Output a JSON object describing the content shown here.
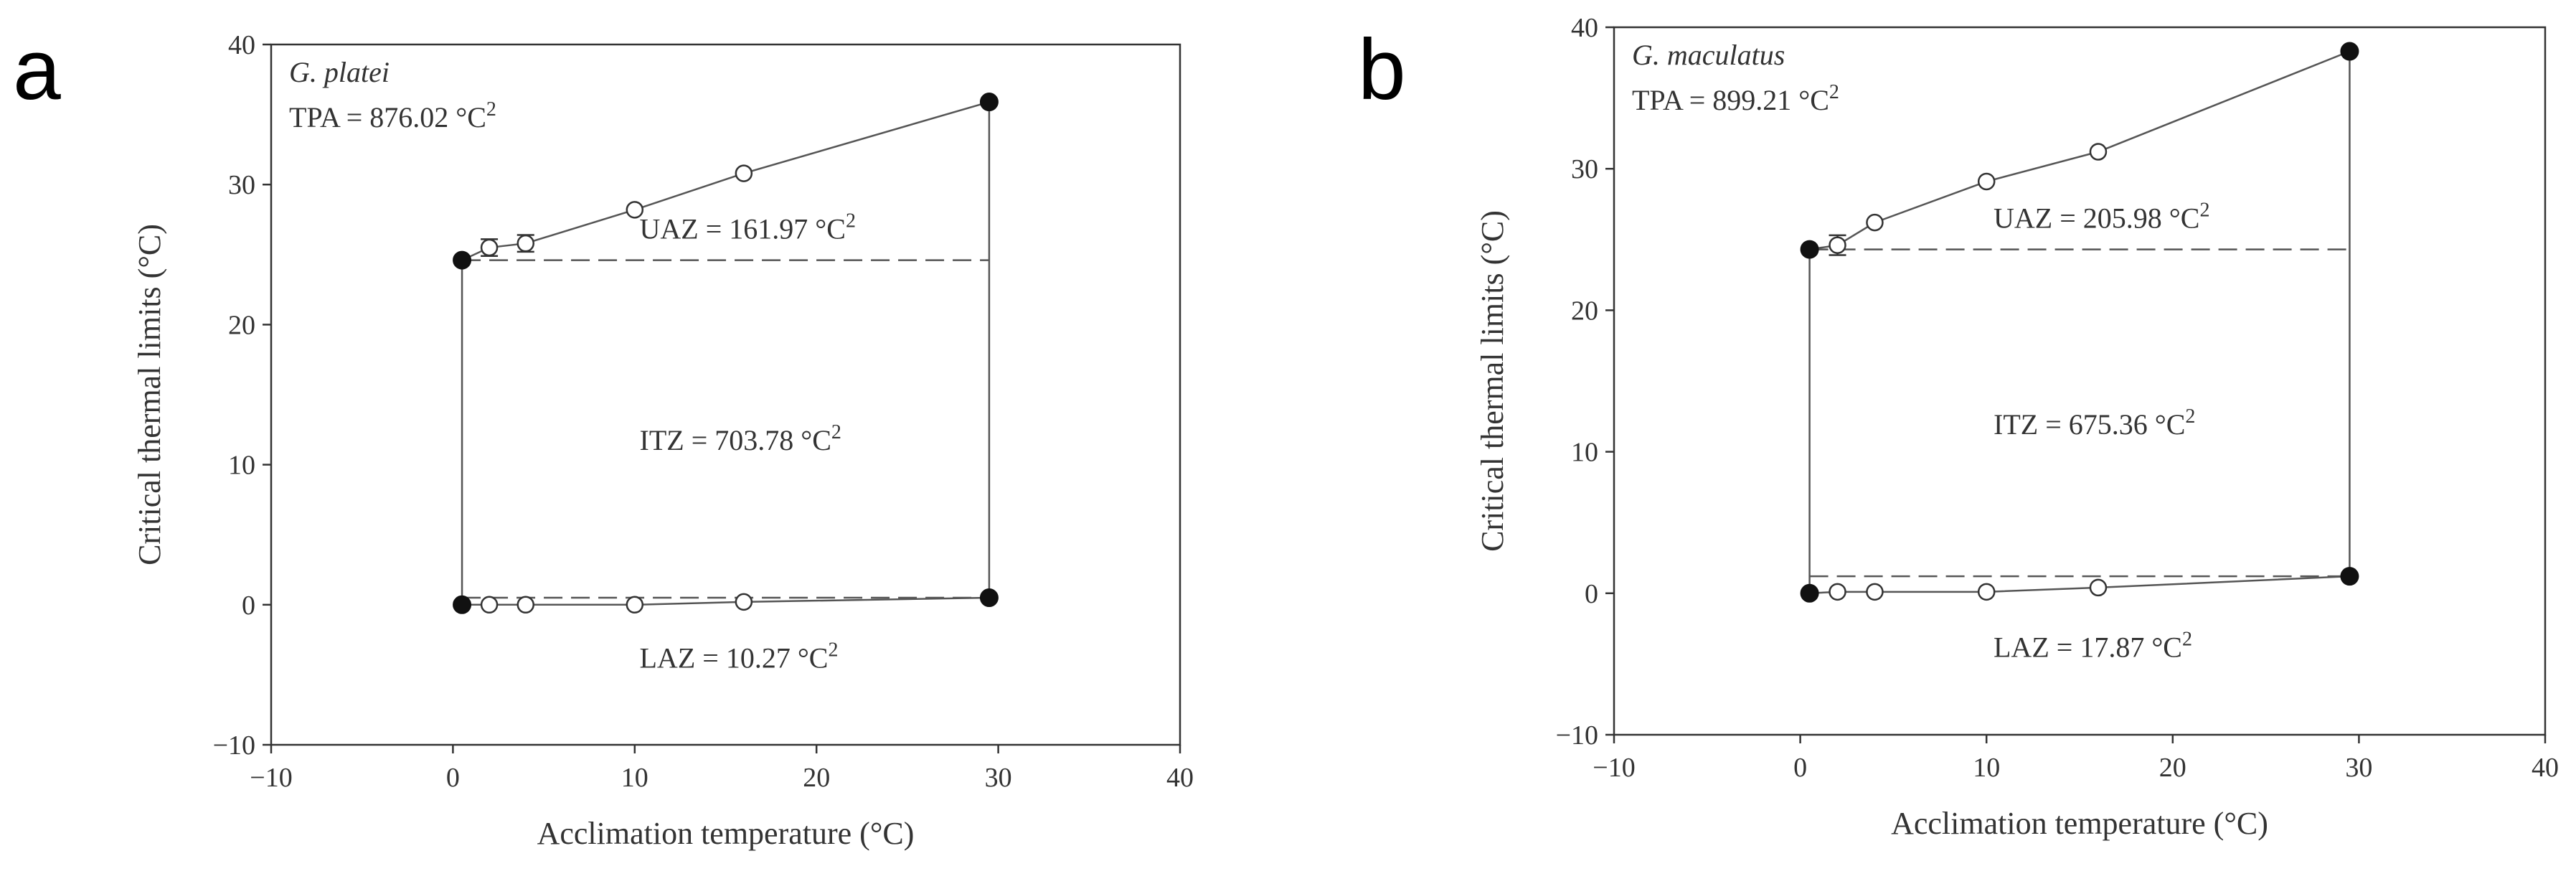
{
  "chart_data": [
    {
      "type": "scatter",
      "panel_label": "a",
      "species": "G. platei",
      "xlabel": "Acclimation temperature (°C)",
      "ylabel": "Critical thermal limits (°C)",
      "xlim": [
        -10,
        40
      ],
      "ylim": [
        -10,
        40
      ],
      "xticks": [
        -10,
        0,
        10,
        20,
        30,
        40
      ],
      "yticks": [
        -10,
        0,
        10,
        20,
        30,
        40
      ],
      "series": [
        {
          "marker": "open",
          "points": [
            {
              "x": 2,
              "y": 25.5,
              "err": 0.6
            },
            {
              "x": 4,
              "y": 25.8,
              "err": 0.6
            },
            {
              "x": 10,
              "y": 28.2
            },
            {
              "x": 16,
              "y": 30.8
            },
            {
              "x": 2,
              "y": 0.0
            },
            {
              "x": 4,
              "y": 0.0
            },
            {
              "x": 10,
              "y": 0.0
            },
            {
              "x": 16,
              "y": 0.2
            }
          ]
        },
        {
          "marker": "filled",
          "points": [
            {
              "x": 0.5,
              "y": 24.6
            },
            {
              "x": 29.5,
              "y": 35.9
            },
            {
              "x": 0.5,
              "y": 0.0
            },
            {
              "x": 29.5,
              "y": 0.5
            }
          ]
        }
      ],
      "upper_line": [
        [
          0.5,
          24.6
        ],
        [
          2,
          25.5
        ],
        [
          4,
          25.8
        ],
        [
          10,
          28.2
        ],
        [
          16,
          30.8
        ],
        [
          29.5,
          35.9
        ]
      ],
      "lower_line": [
        [
          0.5,
          0.0
        ],
        [
          2,
          0.0
        ],
        [
          4,
          0.0
        ],
        [
          10,
          0.0
        ],
        [
          16,
          0.2
        ],
        [
          29.5,
          0.5
        ]
      ],
      "upper_dashed_y": 24.6,
      "lower_dashed_y": 0.5,
      "polygon_x": [
        0.5,
        29.5
      ],
      "annotations": {
        "tpa": "TPA = 876.02 °C",
        "uaz": "UAZ = 161.97 °C",
        "itz": "ITZ = 703.78 °C",
        "laz": "LAZ = 10.27 °C",
        "superscript": "2"
      }
    },
    {
      "type": "scatter",
      "panel_label": "b",
      "species": "G. maculatus",
      "xlabel": "Acclimation temperature (°C)",
      "ylabel": "Critical thermal limits (°C)",
      "xlim": [
        -10,
        40
      ],
      "ylim": [
        -10,
        40
      ],
      "xticks": [
        -10,
        0,
        10,
        20,
        30,
        40
      ],
      "yticks": [
        -10,
        0,
        10,
        20,
        30,
        40
      ],
      "series": [
        {
          "marker": "open",
          "points": [
            {
              "x": 2,
              "y": 24.6,
              "err": 0.7
            },
            {
              "x": 4,
              "y": 26.2
            },
            {
              "x": 10,
              "y": 29.1
            },
            {
              "x": 16,
              "y": 31.2
            },
            {
              "x": 2,
              "y": 0.1
            },
            {
              "x": 4,
              "y": 0.1
            },
            {
              "x": 10,
              "y": 0.1
            },
            {
              "x": 16,
              "y": 0.4
            }
          ]
        },
        {
          "marker": "filled",
          "points": [
            {
              "x": 0.5,
              "y": 24.3
            },
            {
              "x": 29.5,
              "y": 38.3
            },
            {
              "x": 0.5,
              "y": 0.0
            },
            {
              "x": 29.5,
              "y": 1.2
            }
          ]
        }
      ],
      "upper_line": [
        [
          0.5,
          24.3
        ],
        [
          2,
          24.6
        ],
        [
          4,
          26.2
        ],
        [
          10,
          29.1
        ],
        [
          16,
          31.2
        ],
        [
          29.5,
          38.3
        ]
      ],
      "lower_line": [
        [
          0.5,
          0.0
        ],
        [
          2,
          0.1
        ],
        [
          4,
          0.1
        ],
        [
          10,
          0.1
        ],
        [
          16,
          0.4
        ],
        [
          29.5,
          1.2
        ]
      ],
      "upper_dashed_y": 24.3,
      "lower_dashed_y": 1.2,
      "polygon_x": [
        0.5,
        29.5
      ],
      "annotations": {
        "tpa": "TPA = 899.21 °C",
        "uaz": "UAZ = 205.98 °C",
        "itz": "ITZ = 675.36 °C",
        "laz": "LAZ = 17.87 °C",
        "superscript": "2"
      }
    }
  ]
}
